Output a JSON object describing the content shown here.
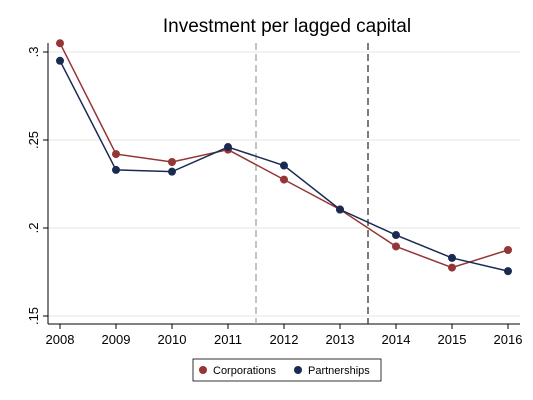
{
  "chart_data": {
    "type": "line",
    "title": "Investment per lagged capital",
    "xlabel": "",
    "ylabel": "",
    "x": [
      2008,
      2009,
      2010,
      2011,
      2012,
      2013,
      2014,
      2015,
      2016
    ],
    "xlim": [
      2008,
      2016
    ],
    "ylim": [
      0.15,
      0.3
    ],
    "y_ticks": [
      0.15,
      0.2,
      0.25,
      0.3
    ],
    "y_tick_labels": [
      ".15",
      ".2",
      ".25",
      ".3"
    ],
    "grid": true,
    "reference_lines": [
      {
        "x": 2011.5,
        "style": "dashed",
        "color": "#aaaaaa"
      },
      {
        "x": 2013.5,
        "style": "dashed",
        "color": "#444444"
      }
    ],
    "legend_position": "bottom",
    "series": [
      {
        "name": "Corporations",
        "color": "#953535",
        "values": [
          0.305,
          0.242,
          0.2375,
          0.2445,
          0.2275,
          0.2105,
          0.1895,
          0.1775,
          0.1875
        ]
      },
      {
        "name": "Partnerships",
        "color": "#1a2a52",
        "values": [
          0.295,
          0.233,
          0.232,
          0.246,
          0.2355,
          0.2105,
          0.196,
          0.183,
          0.1755
        ]
      }
    ]
  }
}
